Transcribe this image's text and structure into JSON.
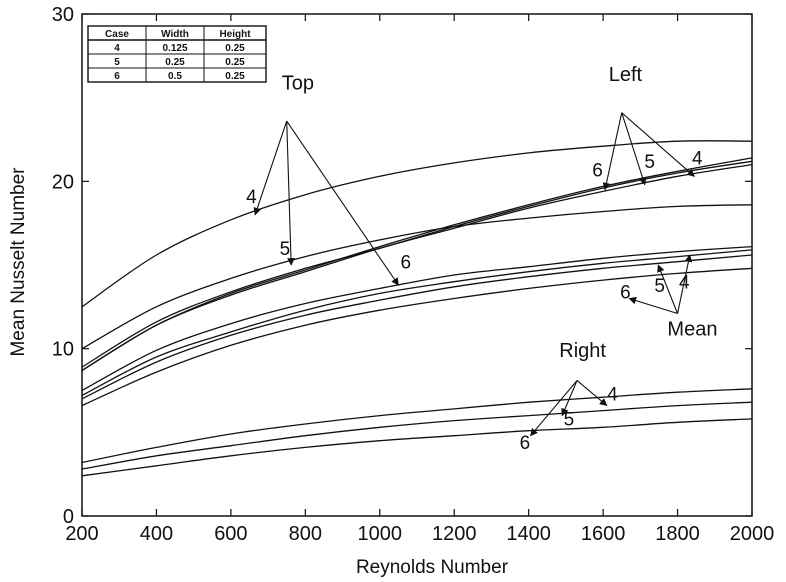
{
  "chart_data": {
    "type": "line",
    "xlabel": "Reynolds Number",
    "ylabel": "Mean Nusselt Number",
    "xlim": [
      200,
      2000
    ],
    "ylim": [
      0,
      30
    ],
    "xticks": [
      200,
      400,
      600,
      800,
      1000,
      1200,
      1400,
      1600,
      1800,
      2000
    ],
    "yticks": [
      0,
      10,
      20,
      30
    ],
    "grid": false,
    "legend": "none",
    "x": [
      200,
      400,
      600,
      800,
      1000,
      1200,
      1400,
      1600,
      1800,
      2000
    ],
    "series": [
      {
        "values": [
          12.5,
          15.6,
          17.7,
          19.2,
          20.3,
          21.1,
          21.7,
          22.1,
          22.4,
          22.4
        ]
      },
      {
        "values": [
          10.0,
          12.5,
          14.2,
          15.5,
          16.5,
          17.3,
          17.8,
          18.2,
          18.5,
          18.6
        ]
      },
      {
        "values": [
          8.9,
          11.6,
          13.4,
          14.8,
          16.0,
          17.3,
          18.5,
          19.6,
          20.5,
          21.2
        ]
      },
      {
        "values": [
          8.7,
          11.4,
          13.3,
          14.7,
          16.1,
          17.4,
          18.6,
          19.7,
          20.6,
          21.4
        ]
      },
      {
        "values": [
          8.7,
          11.4,
          13.2,
          14.6,
          16.0,
          17.2,
          18.4,
          19.4,
          20.3,
          21.0
        ]
      },
      {
        "values": [
          7.5,
          9.9,
          11.5,
          12.7,
          13.6,
          14.4,
          14.9,
          15.4,
          15.8,
          16.1
        ]
      },
      {
        "values": [
          7.2,
          9.5,
          11.0,
          12.3,
          13.3,
          14.0,
          14.6,
          15.1,
          15.5,
          15.9
        ]
      },
      {
        "values": [
          7.0,
          9.2,
          10.8,
          12.0,
          12.9,
          13.7,
          14.3,
          14.8,
          15.2,
          15.6
        ]
      },
      {
        "values": [
          6.6,
          8.6,
          10.2,
          11.4,
          12.3,
          13.0,
          13.6,
          14.1,
          14.5,
          14.8
        ]
      },
      {
        "values": [
          3.2,
          4.1,
          4.9,
          5.5,
          6.0,
          6.4,
          6.8,
          7.1,
          7.4,
          7.6
        ]
      },
      {
        "values": [
          2.8,
          3.6,
          4.2,
          4.8,
          5.3,
          5.7,
          6.0,
          6.3,
          6.6,
          6.8
        ]
      },
      {
        "values": [
          2.4,
          3.0,
          3.6,
          4.1,
          4.5,
          4.8,
          5.1,
          5.3,
          5.6,
          5.8
        ]
      }
    ],
    "table": {
      "headers": [
        "Case",
        "Width",
        "Height"
      ],
      "rows": [
        [
          "4",
          "0.125",
          "0.25"
        ],
        [
          "5",
          "0.25",
          "0.25"
        ],
        [
          "6",
          "0.5",
          "0.25"
        ]
      ]
    },
    "annotations": [
      {
        "label": "Top",
        "text_at": [
          780,
          25.5
        ],
        "from": [
          750,
          23.6
        ],
        "cases": [
          {
            "label": "4",
            "label_at": [
              655,
              18.7
            ],
            "to": [
              665,
              18.0
            ]
          },
          {
            "label": "5",
            "label_at": [
              745,
              15.6
            ],
            "to": [
              762,
              15.0
            ]
          },
          {
            "label": "6",
            "label_at": [
              1070,
              14.8
            ],
            "to": [
              1050,
              13.8
            ]
          }
        ]
      },
      {
        "label": "Left",
        "text_at": [
          1660,
          26.0
        ],
        "from": [
          1650,
          24.1
        ],
        "cases": [
          {
            "label": "6",
            "label_at": [
              1585,
              20.3
            ],
            "to": [
              1605,
              19.5
            ]
          },
          {
            "label": "5",
            "label_at": [
              1725,
              20.8
            ],
            "to": [
              1712,
              19.8
            ]
          },
          {
            "label": "4",
            "label_at": [
              1853,
              21.0
            ],
            "to": [
              1845,
              20.3
            ]
          }
        ]
      },
      {
        "label": "Mean",
        "text_at": [
          1840,
          10.8
        ],
        "from": [
          1800,
          12.1
        ],
        "cases": [
          {
            "label": "6",
            "label_at": [
              1660,
              13.0
            ],
            "to": [
              1670,
              13.0
            ]
          },
          {
            "label": "5",
            "label_at": [
              1752,
              13.4
            ],
            "to": [
              1748,
              15.0
            ]
          },
          {
            "label": "4",
            "label_at": [
              1818,
              13.6
            ],
            "to": [
              1833,
              15.6
            ]
          }
        ]
      },
      {
        "label": "Right",
        "text_at": [
          1545,
          9.5
        ],
        "from": [
          1530,
          8.1
        ],
        "cases": [
          {
            "label": "6",
            "label_at": [
              1390,
              4.0
            ],
            "to": [
              1405,
              4.8
            ]
          },
          {
            "label": "5",
            "label_at": [
              1508,
              5.4
            ],
            "to": [
              1490,
              6.0
            ]
          },
          {
            "label": "4",
            "label_at": [
              1625,
              6.9
            ],
            "to": [
              1610,
              6.6
            ]
          }
        ]
      }
    ]
  }
}
